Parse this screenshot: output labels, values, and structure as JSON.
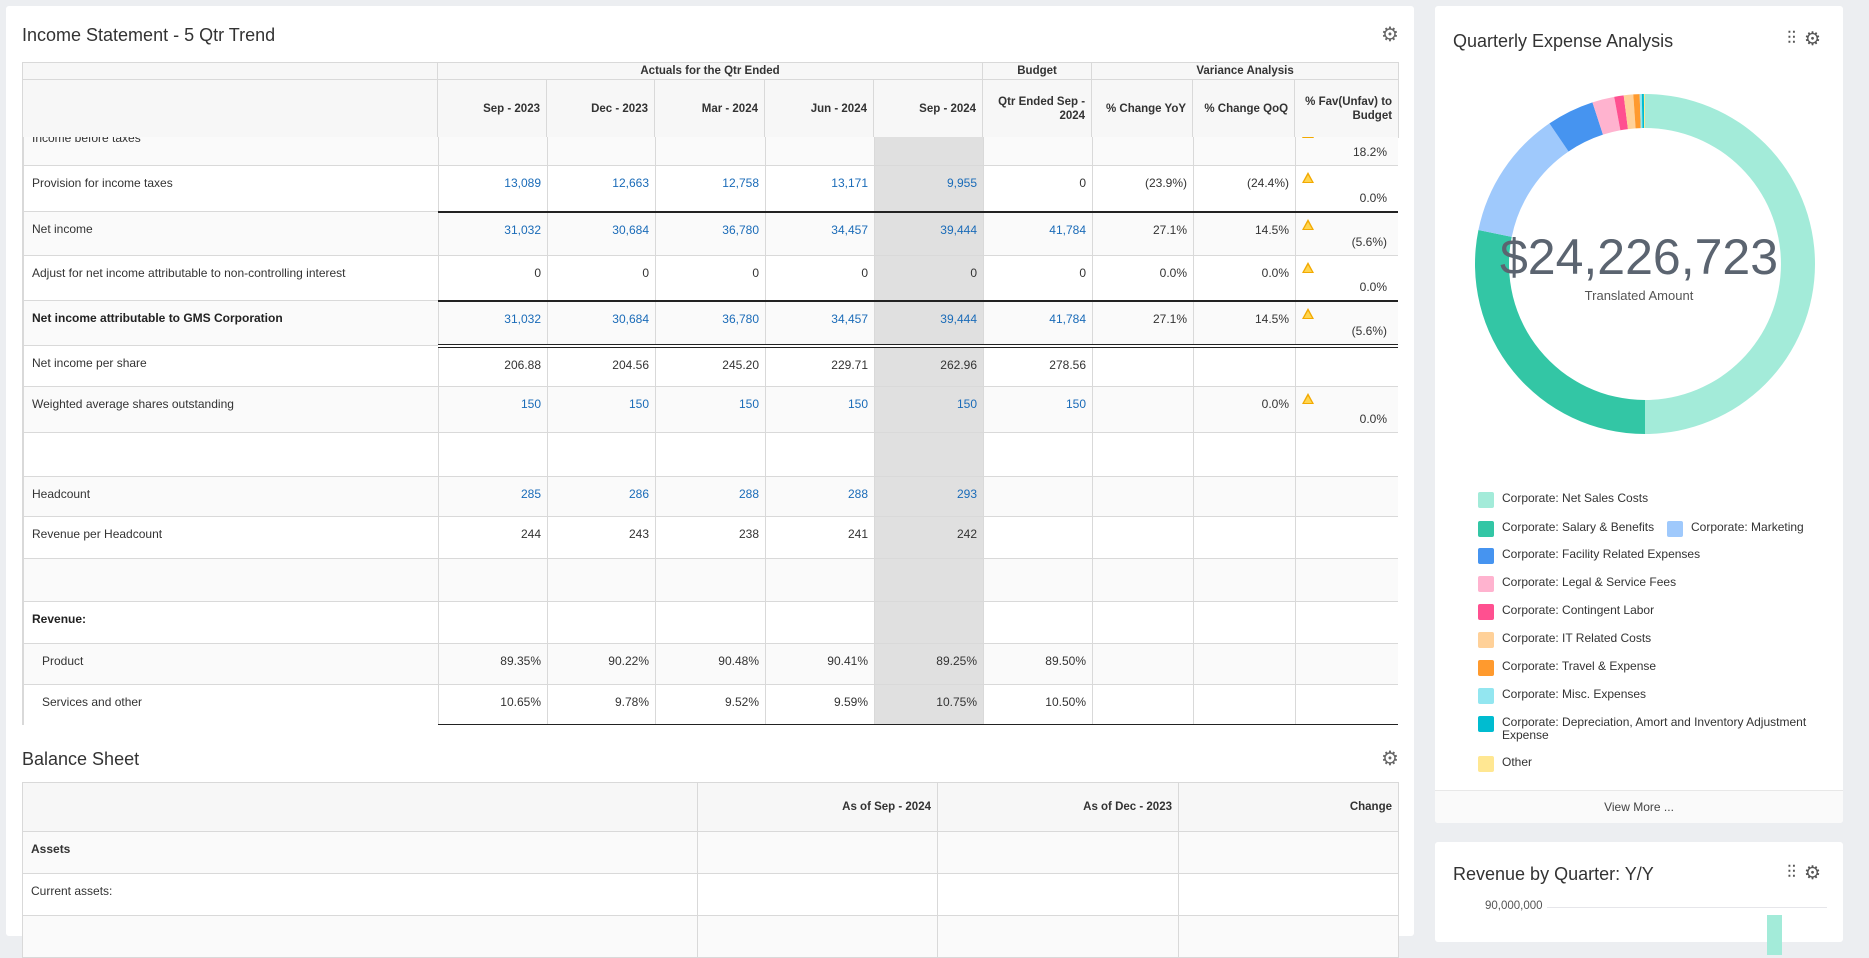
{
  "income_statement": {
    "title": "Income Statement - 5 Qtr Trend",
    "group_headers": [
      "",
      "Actuals for the Qtr Ended",
      "Budget",
      "Variance Analysis"
    ],
    "columns": [
      "",
      "Sep - 2023",
      "Dec - 2023",
      "Mar - 2024",
      "Jun - 2024",
      "Sep - 2024",
      "Qtr Ended Sep - 2024",
      "% Change YoY",
      "% Change QoQ",
      "% Fav(Unfav) to Budget"
    ],
    "rows": [
      {
        "label": "Income before taxes",
        "values": [
          "",
          "",
          "",
          "",
          ""
        ],
        "budget": "",
        "yoy": "",
        "qoq": "",
        "fav": "18.2%",
        "warn": true,
        "blue": true
      },
      {
        "label": "Provision for income taxes",
        "values": [
          "13,089",
          "12,663",
          "12,758",
          "13,171",
          "9,955"
        ],
        "budget": "0",
        "yoy": "(23.9%)",
        "qoq": "(24.4%)",
        "fav": "0.0%",
        "warn": true,
        "blue": true,
        "budget_blue": false
      },
      {
        "label": "Net income",
        "values": [
          "31,032",
          "30,684",
          "36,780",
          "34,457",
          "39,444"
        ],
        "budget": "41,784",
        "yoy": "27.1%",
        "qoq": "14.5%",
        "fav": "(5.6%)",
        "warn": true,
        "blue": true,
        "border": "thick"
      },
      {
        "label": "Adjust for net income attributable to non-controlling interest",
        "values": [
          "0",
          "0",
          "0",
          "0",
          "0"
        ],
        "budget": "0",
        "yoy": "0.0%",
        "qoq": "0.0%",
        "fav": "0.0%",
        "warn": true,
        "blue": false
      },
      {
        "label": "Net income attributable to GMS Corporation",
        "values": [
          "31,032",
          "30,684",
          "36,780",
          "34,457",
          "39,444"
        ],
        "budget": "41,784",
        "yoy": "27.1%",
        "qoq": "14.5%",
        "fav": "(5.6%)",
        "warn": true,
        "blue": true,
        "bold": true,
        "border": "thick"
      },
      {
        "label": "Net income per share",
        "values": [
          "206.88",
          "204.56",
          "245.20",
          "229.71",
          "262.96"
        ],
        "budget": "278.56",
        "yoy": "",
        "qoq": "",
        "fav": "",
        "warn": false,
        "blue": false,
        "border": "double"
      },
      {
        "label": "Weighted average shares outstanding",
        "values": [
          "150",
          "150",
          "150",
          "150",
          "150"
        ],
        "budget": "150",
        "yoy": "",
        "qoq": "0.0%",
        "fav": "0.0%",
        "warn": true,
        "blue": true
      },
      {
        "label": "",
        "values": [
          "",
          "",
          "",
          "",
          ""
        ],
        "budget": "",
        "yoy": "",
        "qoq": "",
        "fav": "",
        "warn": false
      },
      {
        "label": "Headcount",
        "values": [
          "285",
          "286",
          "288",
          "288",
          "293"
        ],
        "budget": "",
        "yoy": "",
        "qoq": "",
        "fav": "",
        "warn": false,
        "blue": true
      },
      {
        "label": "Revenue per Headcount",
        "values": [
          "244",
          "243",
          "238",
          "241",
          "242"
        ],
        "budget": "",
        "yoy": "",
        "qoq": "",
        "fav": "",
        "warn": false,
        "blue": false
      },
      {
        "label": "",
        "values": [
          "",
          "",
          "",
          "",
          ""
        ],
        "budget": "",
        "yoy": "",
        "qoq": "",
        "fav": "",
        "warn": false
      },
      {
        "label": "Revenue:",
        "values": [
          "",
          "",
          "",
          "",
          ""
        ],
        "budget": "",
        "yoy": "",
        "qoq": "",
        "fav": "",
        "warn": false,
        "bold": true
      },
      {
        "label": "Product",
        "values": [
          "89.35%",
          "90.22%",
          "90.48%",
          "90.41%",
          "89.25%"
        ],
        "budget": "89.50%",
        "yoy": "",
        "qoq": "",
        "fav": "",
        "warn": false,
        "indent": true
      },
      {
        "label": "Services and other",
        "values": [
          "10.65%",
          "9.78%",
          "9.52%",
          "9.59%",
          "10.75%"
        ],
        "budget": "10.50%",
        "yoy": "",
        "qoq": "",
        "fav": "",
        "warn": false,
        "indent": true
      },
      {
        "label": "",
        "values": [
          "",
          "",
          "",
          "",
          ""
        ],
        "budget": "",
        "yoy": "",
        "qoq": "",
        "fav": "",
        "warn": false,
        "border": "double"
      }
    ]
  },
  "balance_sheet": {
    "title": "Balance Sheet",
    "columns": [
      "",
      "As of Sep - 2024",
      "As of Dec - 2023",
      "Change"
    ],
    "rows": [
      {
        "label": "Assets",
        "bold": true
      },
      {
        "label": "Current assets:"
      },
      {
        "label": ""
      }
    ]
  },
  "expense_panel": {
    "title": "Quarterly Expense Analysis",
    "total": "$24,226,723",
    "total_label": "Translated Amount",
    "view_more": "View More ...",
    "icons": [
      "sliders-icon",
      "gear-icon"
    ]
  },
  "chart_data": [
    {
      "type": "pie",
      "title": "Quarterly Expense Analysis",
      "unit": "percent of total (approx.)",
      "legend_position": "bottom",
      "slices": [
        {
          "name": "Corporate: Net Sales Costs",
          "value": 50.0,
          "color": "#a3ebd9"
        },
        {
          "name": "Corporate: Salary & Benefits",
          "value": 28.2,
          "color": "#33c6a5"
        },
        {
          "name": "Corporate: Marketing",
          "value": 12.3,
          "color": "#9fc9fc"
        },
        {
          "name": "Corporate: Facility Related Expenses",
          "value": 4.5,
          "color": "#4694f0"
        },
        {
          "name": "Corporate: Legal & Service Fees",
          "value": 2.1,
          "color": "#ffb3cf"
        },
        {
          "name": "Corporate: Contingent Labor",
          "value": 0.9,
          "color": "#ff5090"
        },
        {
          "name": "Corporate: IT Related Costs",
          "value": 0.9,
          "color": "#ffd199"
        },
        {
          "name": "Corporate: Travel & Expense",
          "value": 0.6,
          "color": "#ff9a2e"
        },
        {
          "name": "Corporate: Misc. Expenses",
          "value": 0.2,
          "color": "#93e6f0"
        },
        {
          "name": "Corporate: Depreciation, Amort and Inventory Adjustment Expense",
          "value": 0.2,
          "color": "#00bcd0"
        },
        {
          "name": "Other",
          "value": 0.1,
          "color": "#ffe792"
        }
      ]
    },
    {
      "type": "bar",
      "title": "Revenue by Quarter: Y/Y",
      "y_ticks": [
        "90,000,000"
      ]
    }
  ]
}
